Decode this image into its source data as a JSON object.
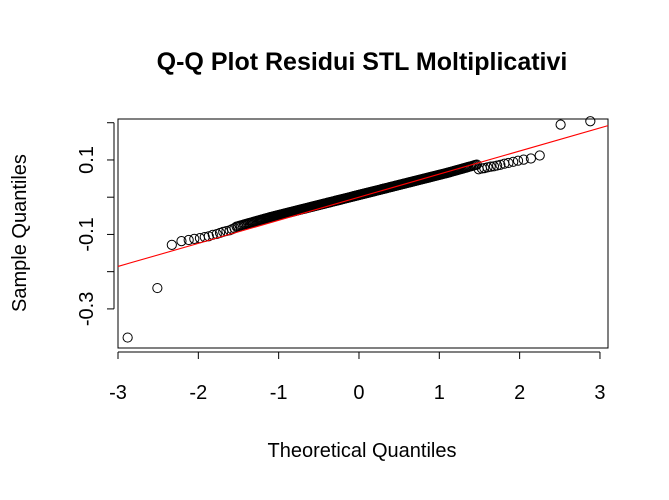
{
  "chart_data": {
    "type": "scatter",
    "title": "Q-Q Plot Residui STL Moltiplicativi",
    "xlabel": "Theoretical Quantiles",
    "ylabel": "Sample Quantiles",
    "xlim": [
      -3.0,
      3.1
    ],
    "ylim": [
      -0.405,
      0.21
    ],
    "x_ticks": [
      -3,
      -2,
      -1,
      0,
      1,
      2,
      3
    ],
    "x_tick_labels": [
      "-3",
      "-2",
      "-1",
      "0",
      "1",
      "2",
      "3"
    ],
    "y_ticks": [
      -0.3,
      -0.2,
      -0.1,
      0.0,
      0.1,
      0.2
    ],
    "y_tick_labels": [
      "-0.3",
      "",
      "-0.1",
      "",
      "0.1",
      ""
    ],
    "grid": false,
    "point_color": "#000000",
    "line_color": "#ff0000",
    "sample_size": 400,
    "qq_line": {
      "intercept": 0.0,
      "slope": 0.062
    },
    "series": [
      {
        "x": [
          -2.88,
          -2.51,
          -2.33,
          -2.21,
          -2.12,
          -2.05,
          -1.98,
          -1.92,
          -1.87,
          -1.82,
          -1.77,
          -1.73,
          -1.69,
          -1.65,
          -1.61,
          -1.58,
          -1.55
        ],
        "y": [
          -0.377,
          -0.244,
          -0.128,
          -0.118,
          -0.115,
          -0.112,
          -0.11,
          -0.107,
          -0.105,
          -0.101,
          -0.099,
          -0.096,
          -0.093,
          -0.091,
          -0.089,
          -0.086,
          -0.083
        ]
      },
      {
        "x": [
          1.49,
          1.53,
          1.56,
          1.6,
          1.64,
          1.68,
          1.72,
          1.76,
          1.81,
          1.86,
          1.92,
          1.98,
          2.05,
          2.14,
          2.25,
          2.51,
          2.88
        ],
        "y": [
          0.075,
          0.077,
          0.078,
          0.08,
          0.082,
          0.083,
          0.085,
          0.087,
          0.09,
          0.092,
          0.095,
          0.098,
          0.101,
          0.104,
          0.112,
          0.195,
          0.204
        ]
      }
    ]
  }
}
